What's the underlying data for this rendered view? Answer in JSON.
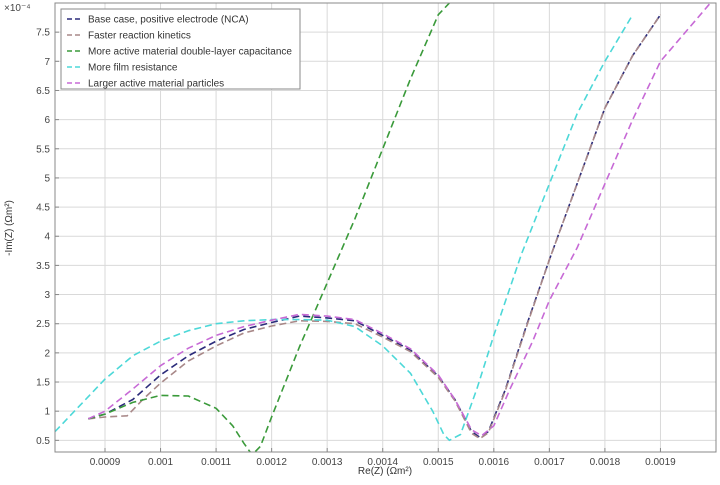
{
  "chart_data": {
    "type": "line",
    "title": "",
    "xlabel": "Re(Z) (Ωm²)",
    "ylabel": "-Im(Z) (Ωm²)",
    "y_exponent_label": "×10⁻⁴",
    "xlim": [
      0.00081,
      0.002
    ],
    "ylim": [
      0.3,
      8.0
    ],
    "y_scale_factor": 0.0001,
    "grid": true,
    "legend_position": "top-left",
    "x_ticks": [
      0.0009,
      0.001,
      0.0011,
      0.0012,
      0.0013,
      0.0014,
      0.0015,
      0.0016,
      0.0017,
      0.0018,
      0.0019
    ],
    "x_tick_labels": [
      "0.0009",
      "0.001",
      "0.0011",
      "0.0012",
      "0.0013",
      "0.0014",
      "0.0015",
      "0.0016",
      "0.0017",
      "0.0018",
      "0.0019"
    ],
    "y_ticks": [
      0.5,
      1,
      1.5,
      2,
      2.5,
      3,
      3.5,
      4,
      4.5,
      5,
      5.5,
      6,
      6.5,
      7,
      7.5
    ],
    "y_tick_labels": [
      "0.5",
      "1",
      "1.5",
      "2",
      "2.5",
      "3",
      "3.5",
      "4",
      "4.5",
      "5",
      "5.5",
      "6",
      "6.5",
      "7",
      "7.5"
    ],
    "series": [
      {
        "name": "Base case, positive electrode (NCA)",
        "color": "#2b2b7a",
        "points": [
          [
            0.00087,
            0.87
          ],
          [
            0.0009,
            0.95
          ],
          [
            0.00095,
            1.2
          ],
          [
            0.001,
            1.62
          ],
          [
            0.00105,
            1.95
          ],
          [
            0.0011,
            2.2
          ],
          [
            0.00115,
            2.4
          ],
          [
            0.0012,
            2.52
          ],
          [
            0.00125,
            2.63
          ],
          [
            0.0013,
            2.6
          ],
          [
            0.00135,
            2.55
          ],
          [
            0.0014,
            2.3
          ],
          [
            0.00145,
            2.05
          ],
          [
            0.0015,
            1.6
          ],
          [
            0.00153,
            1.2
          ],
          [
            0.00156,
            0.65
          ],
          [
            0.001575,
            0.55
          ],
          [
            0.00159,
            0.65
          ],
          [
            0.00162,
            1.35
          ],
          [
            0.00166,
            2.5
          ],
          [
            0.0017,
            3.6
          ],
          [
            0.00175,
            4.9
          ],
          [
            0.0018,
            6.2
          ],
          [
            0.00185,
            7.1
          ],
          [
            0.0019,
            7.8
          ]
        ]
      },
      {
        "name": "Faster reaction kinetics",
        "color": "#a88888",
        "points": [
          [
            0.00087,
            0.87
          ],
          [
            0.0009,
            0.9
          ],
          [
            0.00094,
            0.92
          ],
          [
            0.00097,
            1.22
          ],
          [
            0.001,
            1.48
          ],
          [
            0.00105,
            1.86
          ],
          [
            0.0011,
            2.12
          ],
          [
            0.00115,
            2.34
          ],
          [
            0.0012,
            2.46
          ],
          [
            0.00125,
            2.55
          ],
          [
            0.0013,
            2.54
          ],
          [
            0.00135,
            2.5
          ],
          [
            0.0014,
            2.27
          ],
          [
            0.00145,
            2.02
          ],
          [
            0.0015,
            1.58
          ],
          [
            0.00153,
            1.18
          ],
          [
            0.00156,
            0.62
          ],
          [
            0.001575,
            0.53
          ],
          [
            0.00159,
            0.63
          ],
          [
            0.00162,
            1.33
          ],
          [
            0.00166,
            2.48
          ],
          [
            0.0017,
            3.6
          ],
          [
            0.00175,
            4.9
          ],
          [
            0.0018,
            6.2
          ],
          [
            0.00185,
            7.1
          ],
          [
            0.0019,
            7.8
          ]
        ]
      },
      {
        "name": "More active material double-layer capacitance",
        "color": "#3a9a3a",
        "points": [
          [
            0.00087,
            0.87
          ],
          [
            0.0009,
            0.95
          ],
          [
            0.00095,
            1.15
          ],
          [
            0.001,
            1.27
          ],
          [
            0.00105,
            1.26
          ],
          [
            0.0011,
            1.05
          ],
          [
            0.00113,
            0.75
          ],
          [
            0.00115,
            0.45
          ],
          [
            0.001165,
            0.25
          ],
          [
            0.00118,
            0.4
          ],
          [
            0.0012,
            0.9
          ],
          [
            0.00125,
            2.1
          ],
          [
            0.0013,
            3.2
          ],
          [
            0.00135,
            4.3
          ],
          [
            0.0014,
            5.5
          ],
          [
            0.00145,
            6.7
          ],
          [
            0.0015,
            7.8
          ],
          [
            0.00152,
            8.0
          ]
        ]
      },
      {
        "name": "More film resistance",
        "color": "#4dd8d8",
        "points": [
          [
            0.00081,
            0.65
          ],
          [
            0.00085,
            1.05
          ],
          [
            0.0009,
            1.55
          ],
          [
            0.00095,
            1.95
          ],
          [
            0.001,
            2.2
          ],
          [
            0.00105,
            2.38
          ],
          [
            0.0011,
            2.5
          ],
          [
            0.00115,
            2.55
          ],
          [
            0.0012,
            2.57
          ],
          [
            0.00125,
            2.57
          ],
          [
            0.0013,
            2.56
          ],
          [
            0.00135,
            2.45
          ],
          [
            0.0014,
            2.12
          ],
          [
            0.00145,
            1.65
          ],
          [
            0.00149,
            1.0
          ],
          [
            0.00151,
            0.6
          ],
          [
            0.00152,
            0.5
          ],
          [
            0.00154,
            0.6
          ],
          [
            0.00157,
            1.4
          ],
          [
            0.0016,
            2.3
          ],
          [
            0.00165,
            3.7
          ],
          [
            0.0017,
            4.9
          ],
          [
            0.00175,
            6.1
          ],
          [
            0.0018,
            7.0
          ],
          [
            0.00185,
            7.8
          ]
        ]
      },
      {
        "name": "Larger active material particles",
        "color": "#c76ad6",
        "points": [
          [
            0.00087,
            0.87
          ],
          [
            0.0009,
            1.0
          ],
          [
            0.00095,
            1.38
          ],
          [
            0.001,
            1.78
          ],
          [
            0.00105,
            2.08
          ],
          [
            0.0011,
            2.3
          ],
          [
            0.00115,
            2.45
          ],
          [
            0.0012,
            2.56
          ],
          [
            0.00125,
            2.66
          ],
          [
            0.0013,
            2.63
          ],
          [
            0.00135,
            2.57
          ],
          [
            0.0014,
            2.33
          ],
          [
            0.00145,
            2.07
          ],
          [
            0.0015,
            1.62
          ],
          [
            0.00153,
            1.2
          ],
          [
            0.00156,
            0.68
          ],
          [
            0.001578,
            0.58
          ],
          [
            0.0016,
            0.75
          ],
          [
            0.00163,
            1.4
          ],
          [
            0.00167,
            2.2
          ],
          [
            0.0017,
            2.9
          ],
          [
            0.00175,
            3.8
          ],
          [
            0.0018,
            4.9
          ],
          [
            0.00185,
            6.0
          ],
          [
            0.0019,
            7.0
          ],
          [
            0.00199,
            8.0
          ]
        ]
      }
    ]
  }
}
